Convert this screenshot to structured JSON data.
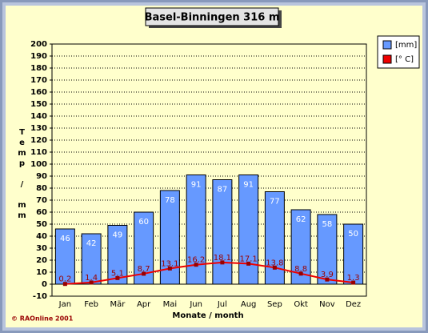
{
  "chart_data": {
    "type": "bar",
    "title": "Basel-Binningen 316 m",
    "x_label": "Monate / month",
    "y_label": "Temp / mm",
    "footer": "© RAOnline 2001",
    "categories": [
      "Jan",
      "Feb",
      "Mär",
      "Apr",
      "Mai",
      "Jun",
      "Jul",
      "Aug",
      "Sep",
      "Okt",
      "Nov",
      "Dez"
    ],
    "series": [
      {
        "name": "[mm]",
        "type": "bar",
        "color": "#6699ff",
        "values": [
          46,
          42,
          49,
          60,
          78,
          91,
          87,
          91,
          77,
          62,
          58,
          50
        ]
      },
      {
        "name": "[° C]",
        "type": "line",
        "color": "#ee0000",
        "values": [
          0.2,
          1.4,
          5.1,
          8.7,
          13.1,
          16.2,
          18.1,
          17.1,
          13.8,
          8.8,
          3.9,
          1.3
        ]
      }
    ],
    "ylim": [
      -10,
      200
    ],
    "yticks": [
      -10,
      0,
      10,
      20,
      30,
      40,
      50,
      60,
      70,
      80,
      90,
      100,
      110,
      120,
      130,
      140,
      150,
      160,
      170,
      180,
      190,
      200
    ],
    "grid": true
  }
}
